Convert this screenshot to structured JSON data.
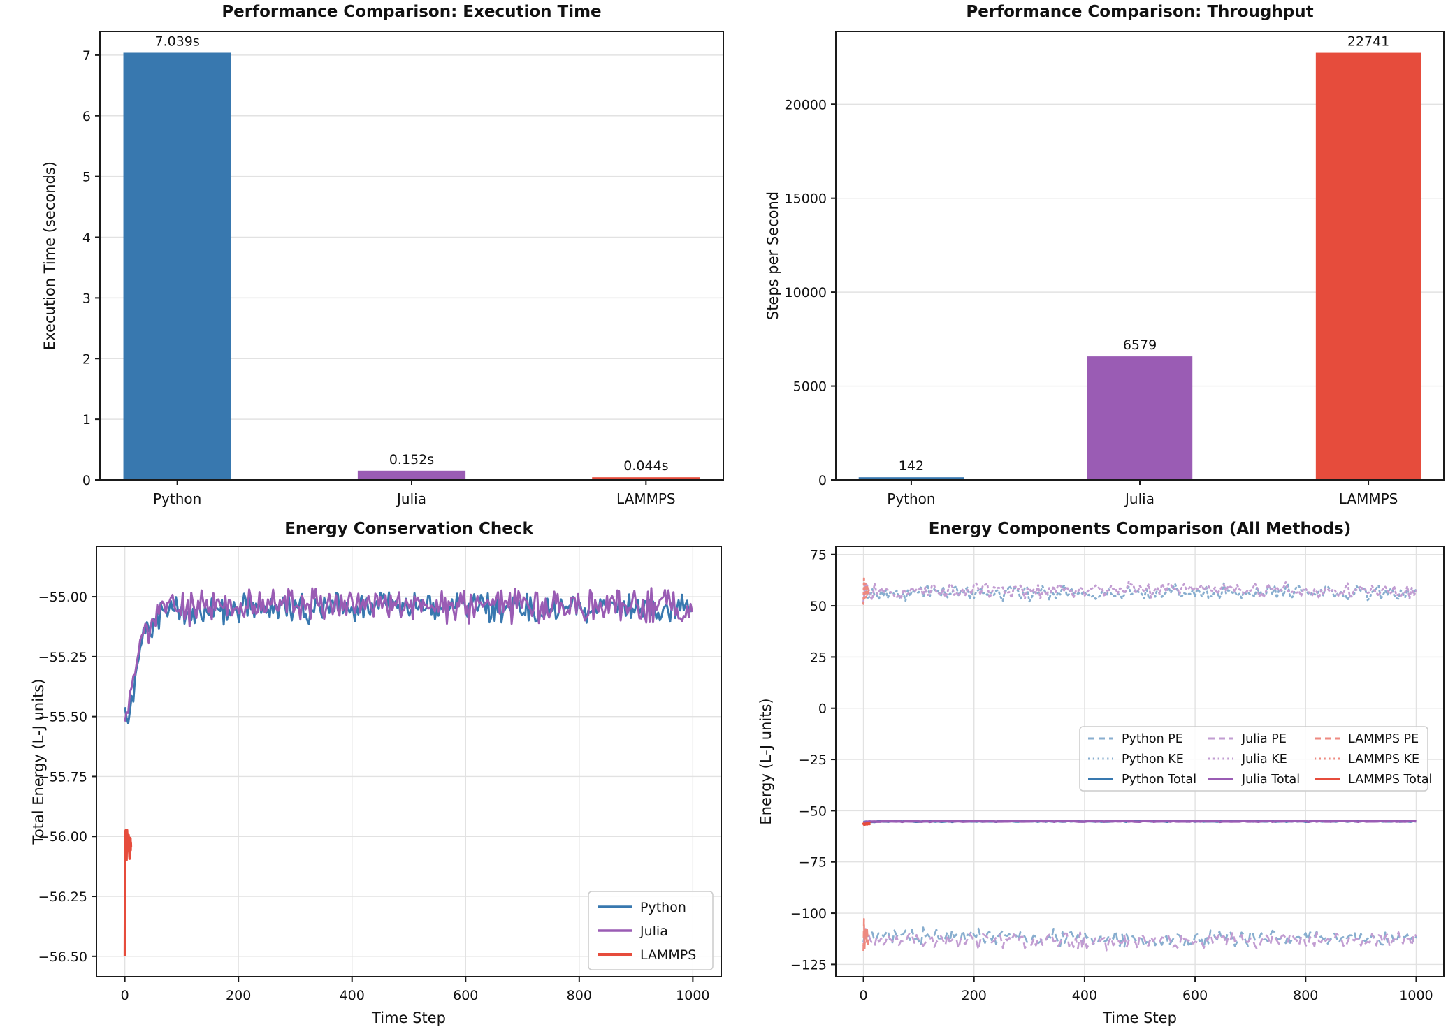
{
  "figure": {
    "background": "#ffffff",
    "text_color": "#111111",
    "spine_color": "#1a1a1a",
    "grid_color": "#e2e2e2"
  },
  "palette": {
    "python_blue": "#3878af",
    "julia_purple": "#9a5cb4",
    "lammps_red": "#e64c3c",
    "python_blue_light": "#88aecf",
    "julia_purple_light": "#c29dd2",
    "lammps_red_light": "#ee8a80"
  },
  "chart_data": [
    {
      "id": "execution_time",
      "type": "bar",
      "title": "Performance Comparison: Execution Time",
      "xlabel": "",
      "ylabel": "Execution Time (seconds)",
      "categories": [
        "Python",
        "Julia",
        "LAMMPS"
      ],
      "values": [
        7.039,
        0.152,
        0.044
      ],
      "bar_labels": [
        "7.039s",
        "0.152s",
        "0.044s"
      ],
      "bar_colors": [
        "#3878af",
        "#9a5cb4",
        "#e64c3c"
      ],
      "ylim": [
        0,
        7.39
      ],
      "yticks": [
        0,
        1,
        2,
        3,
        4,
        5,
        6,
        7
      ],
      "ytick_labels": [
        "0",
        "1",
        "2",
        "3",
        "4",
        "5",
        "6",
        "7"
      ],
      "grid": "y",
      "legend": null
    },
    {
      "id": "throughput",
      "type": "bar",
      "title": "Performance Comparison: Throughput",
      "xlabel": "",
      "ylabel": "Steps per Second",
      "categories": [
        "Python",
        "Julia",
        "LAMMPS"
      ],
      "values": [
        142,
        6579,
        22741
      ],
      "bar_labels": [
        "142",
        "6579",
        "22741"
      ],
      "bar_colors": [
        "#3878af",
        "#9a5cb4",
        "#e64c3c"
      ],
      "ylim": [
        0,
        23878
      ],
      "yticks": [
        0,
        5000,
        10000,
        15000,
        20000
      ],
      "ytick_labels": [
        "0",
        "5000",
        "10000",
        "15000",
        "20000"
      ],
      "grid": "y",
      "legend": null
    },
    {
      "id": "energy_conservation",
      "type": "line",
      "title": "Energy Conservation Check",
      "xlabel": "Time Step",
      "ylabel": "Total Energy (L-J units)",
      "xlim": [
        -50,
        1050
      ],
      "ylim": [
        -56.585,
        -54.79
      ],
      "xticks": [
        0,
        200,
        400,
        600,
        800,
        1000
      ],
      "xtick_labels": [
        "0",
        "200",
        "400",
        "600",
        "800",
        "1000"
      ],
      "yticks": [
        -55.0,
        -55.25,
        -55.5,
        -55.75,
        -56.0,
        -56.25,
        -56.5
      ],
      "ytick_labels": [
        "−55.00",
        "−55.25",
        "−55.50",
        "−55.75",
        "−56.00",
        "−56.25",
        "−56.50"
      ],
      "grid": "both",
      "legend": {
        "loc": "lower-right",
        "entries": [
          "Python",
          "Julia",
          "LAMMPS"
        ]
      },
      "series": [
        {
          "name": "Python",
          "color": "#3878af",
          "style": "solid",
          "width": 3,
          "x_start": 0,
          "x_end": 1000,
          "step": 3,
          "noise": 0.075,
          "seed": 7,
          "anchors": [
            [
              0,
              -55.5
            ],
            [
              4,
              -55.56
            ],
            [
              10,
              -55.46
            ],
            [
              25,
              -55.22
            ],
            [
              45,
              -55.12
            ],
            [
              70,
              -55.06
            ],
            [
              300,
              -55.04
            ],
            [
              1000,
              -55.05
            ]
          ]
        },
        {
          "name": "Julia",
          "color": "#9a5cb4",
          "style": "solid",
          "width": 3,
          "x_start": 0,
          "x_end": 1000,
          "step": 3,
          "noise": 0.085,
          "seed": 21,
          "anchors": [
            [
              0,
              -55.49
            ],
            [
              6,
              -55.5
            ],
            [
              15,
              -55.35
            ],
            [
              30,
              -55.17
            ],
            [
              55,
              -55.09
            ],
            [
              80,
              -55.04
            ],
            [
              1000,
              -55.04
            ]
          ]
        },
        {
          "name": "LAMMPS",
          "color": "#e64c3c",
          "style": "solid",
          "width": 3.5,
          "x_start": 0,
          "x_end": 11,
          "step": 0.3,
          "noise": 0.03,
          "seed": 5,
          "anchors": [
            [
              0,
              -56.5
            ],
            [
              0.5,
              -55.95
            ],
            [
              1.2,
              -56.08
            ],
            [
              2,
              -55.97
            ],
            [
              3,
              -56.1
            ],
            [
              4,
              -55.96
            ],
            [
              5,
              -56.07
            ],
            [
              6.5,
              -55.99
            ],
            [
              8,
              -56.09
            ],
            [
              9.5,
              -56.01
            ],
            [
              11,
              -56.06
            ]
          ]
        }
      ]
    },
    {
      "id": "energy_components",
      "type": "line",
      "title": "Energy Components Comparison (All Methods)",
      "xlabel": "Time Step",
      "ylabel": "Energy (L-J units)",
      "xlim": [
        -50,
        1050
      ],
      "ylim": [
        -131,
        79
      ],
      "xticks": [
        0,
        200,
        400,
        600,
        800,
        1000
      ],
      "xtick_labels": [
        "0",
        "200",
        "400",
        "600",
        "800",
        "1000"
      ],
      "yticks": [
        75,
        50,
        25,
        0,
        -25,
        -50,
        -75,
        -100,
        -125
      ],
      "ytick_labels": [
        "75",
        "50",
        "25",
        "0",
        "−25",
        "−50",
        "−75",
        "−100",
        "−125"
      ],
      "grid": "both",
      "legend": {
        "loc": "center-right",
        "columns": 3,
        "entries": [
          "Python PE",
          "Python KE",
          "Python Total",
          "Julia PE",
          "Julia KE",
          "Julia Total",
          "LAMMPS PE",
          "LAMMPS KE",
          "LAMMPS Total"
        ]
      },
      "series": [
        {
          "name": "Python PE",
          "color": "#88aecf",
          "style": "dashed",
          "width": 2.6,
          "x_start": 0,
          "x_end": 1000,
          "step": 4,
          "noise": 5,
          "seed": 11,
          "anchors": [
            [
              0,
              -118
            ],
            [
              3,
              -105
            ],
            [
              8,
              -111
            ],
            [
              500,
              -112.5
            ],
            [
              1000,
              -112
            ]
          ]
        },
        {
          "name": "Python KE",
          "color": "#88aecf",
          "style": "dotted",
          "width": 2.8,
          "x_start": 0,
          "x_end": 1000,
          "step": 4,
          "noise": 4.5,
          "seed": 12,
          "anchors": [
            [
              0,
              51
            ],
            [
              3,
              64
            ],
            [
              8,
              56
            ],
            [
              500,
              56.5
            ],
            [
              1000,
              56.5
            ]
          ]
        },
        {
          "name": "Julia PE",
          "color": "#c29dd2",
          "style": "dashed",
          "width": 2.6,
          "x_start": 0,
          "x_end": 1000,
          "step": 4,
          "noise": 5,
          "seed": 14,
          "anchors": [
            [
              0,
              -117
            ],
            [
              4,
              -107
            ],
            [
              10,
              -113
            ],
            [
              500,
              -113.5
            ],
            [
              1000,
              -112.5
            ]
          ]
        },
        {
          "name": "Julia KE",
          "color": "#c29dd2",
          "style": "dotted",
          "width": 2.8,
          "x_start": 0,
          "x_end": 1000,
          "step": 4,
          "noise": 4.5,
          "seed": 15,
          "anchors": [
            [
              0,
              50
            ],
            [
              4,
              63
            ],
            [
              10,
              57
            ],
            [
              500,
              58
            ],
            [
              1000,
              57.5
            ]
          ]
        },
        {
          "name": "LAMMPS PE",
          "color": "#ee8a80",
          "style": "dashed",
          "width": 2.6,
          "x_start": 0,
          "x_end": 10,
          "step": 0.5,
          "noise": 2,
          "seed": 17,
          "anchors": [
            [
              0,
              -119
            ],
            [
              1,
              -104
            ],
            [
              2,
              -117
            ],
            [
              3.5,
              -107
            ],
            [
              5,
              -116
            ],
            [
              6.5,
              -108
            ],
            [
              8,
              -114
            ],
            [
              10,
              -110
            ]
          ]
        },
        {
          "name": "LAMMPS KE",
          "color": "#ee8a80",
          "style": "dotted",
          "width": 2.8,
          "x_start": 0,
          "x_end": 10,
          "step": 0.5,
          "noise": 1.5,
          "seed": 18,
          "anchors": [
            [
              0,
              51
            ],
            [
              1,
              65
            ],
            [
              2,
              53
            ],
            [
              3.5,
              62
            ],
            [
              5,
              54
            ],
            [
              6.5,
              61
            ],
            [
              8,
              55
            ],
            [
              10,
              58
            ]
          ]
        },
        {
          "name": "Python Total",
          "color": "#3878af",
          "style": "solid",
          "width": 3.5,
          "x_start": 0,
          "x_end": 1000,
          "step": 5,
          "noise": 0.3,
          "seed": 13,
          "anchors": [
            [
              0,
              -55.6
            ],
            [
              30,
              -55.2
            ],
            [
              1000,
              -55.1
            ]
          ]
        },
        {
          "name": "Julia Total",
          "color": "#9a5cb4",
          "style": "solid",
          "width": 3.5,
          "x_start": 0,
          "x_end": 1000,
          "step": 5,
          "noise": 0.3,
          "seed": 16,
          "anchors": [
            [
              0,
              -55.5
            ],
            [
              30,
              -55.2
            ],
            [
              1000,
              -55.15
            ]
          ]
        },
        {
          "name": "LAMMPS Total",
          "color": "#e64c3c",
          "style": "solid",
          "width": 4,
          "x_start": 0,
          "x_end": 12,
          "step": 0.5,
          "noise": 0.25,
          "seed": 19,
          "anchors": [
            [
              0,
              -56.6
            ],
            [
              12,
              -56.3
            ]
          ]
        }
      ]
    }
  ]
}
